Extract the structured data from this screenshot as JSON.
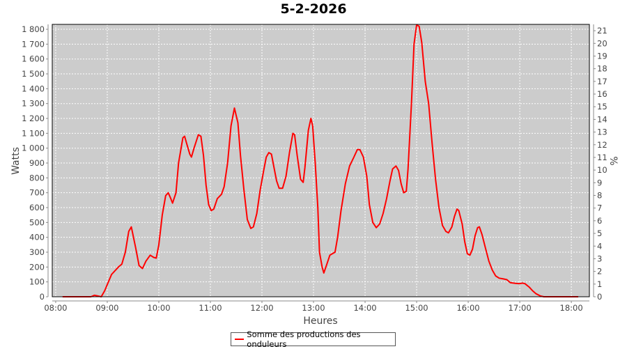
{
  "chart_data": {
    "type": "line",
    "title": "5-2-2026",
    "xlabel": "Heures",
    "ylabel": "Watts",
    "y2label": "%",
    "xlim": [
      "07:56",
      "18:21"
    ],
    "ylim": [
      0,
      1833
    ],
    "y2lim": [
      0,
      21.5
    ],
    "xticks": [
      "08:00",
      "09:00",
      "10:00",
      "11:00",
      "12:00",
      "13:00",
      "14:00",
      "15:00",
      "16:00",
      "17:00",
      "18:00"
    ],
    "yticks": [
      "0",
      "100",
      "200",
      "300",
      "400",
      "500",
      "600",
      "700",
      "800",
      "900",
      "1 000",
      "1 100",
      "1 200",
      "1 300",
      "1 400",
      "1 500",
      "1 600",
      "1 700",
      "1 800"
    ],
    "y2ticks": [
      "0",
      "1",
      "2",
      "3",
      "4",
      "5",
      "6",
      "7",
      "8",
      "9",
      "10",
      "11",
      "12",
      "13",
      "14",
      "15",
      "16",
      "17",
      "18",
      "19",
      "20",
      "21"
    ],
    "grid": true,
    "plot_background": "#cccccc",
    "legend_position": "bottom",
    "series": [
      {
        "name": "Somme des productions des onduleurs",
        "color": "#ff0000",
        "x": [
          "08:08",
          "08:41",
          "08:45",
          "08:49",
          "08:53",
          "08:57",
          "09:05",
          "09:13",
          "09:17",
          "09:21",
          "09:25",
          "09:28",
          "09:33",
          "09:37",
          "09:41",
          "09:45",
          "09:50",
          "09:54",
          "09:57",
          "10:00",
          "10:04",
          "10:08",
          "10:11",
          "10:14",
          "10:16",
          "10:20",
          "10:23",
          "10:28",
          "10:30",
          "10:32",
          "10:36",
          "10:38",
          "10:41",
          "10:46",
          "10:49",
          "10:52",
          "10:55",
          "10:58",
          "11:01",
          "11:04",
          "11:08",
          "11:13",
          "11:16",
          "11:20",
          "11:24",
          "11:28",
          "11:32",
          "11:35",
          "11:39",
          "11:43",
          "11:47",
          "11:50",
          "11:54",
          "11:58",
          "12:02",
          "12:05",
          "12:08",
          "12:11",
          "12:14",
          "12:17",
          "12:20",
          "12:24",
          "12:28",
          "12:32",
          "12:36",
          "12:38",
          "12:41",
          "12:45",
          "12:48",
          "12:50",
          "12:54",
          "12:57",
          "12:59",
          "13:02",
          "13:05",
          "13:07",
          "13:10",
          "13:12",
          "13:15",
          "13:19",
          "13:22",
          "13:25",
          "13:28",
          "13:32",
          "13:37",
          "13:42",
          "13:47",
          "13:51",
          "13:54",
          "13:58",
          "14:02",
          "14:05",
          "14:09",
          "14:13",
          "14:17",
          "14:21",
          "14:25",
          "14:29",
          "14:32",
          "14:36",
          "14:39",
          "14:42",
          "14:45",
          "14:48",
          "14:50",
          "14:54",
          "14:57",
          "15:00",
          "15:03",
          "15:06",
          "15:10",
          "15:14",
          "15:18",
          "15:22",
          "15:26",
          "15:30",
          "15:34",
          "15:37",
          "15:41",
          "15:44",
          "15:47",
          "15:49",
          "15:53",
          "15:56",
          "15:59",
          "16:02",
          "16:05",
          "16:08",
          "16:11",
          "16:13",
          "16:16",
          "16:20",
          "16:24",
          "16:28",
          "16:32",
          "16:36",
          "16:41",
          "16:45",
          "16:49",
          "16:55",
          "17:00",
          "17:03",
          "17:06",
          "17:11",
          "17:15",
          "17:19",
          "17:24",
          "17:28",
          "18:08"
        ],
        "y": [
          0,
          0,
          10,
          5,
          0,
          40,
          150,
          200,
          220,
          300,
          440,
          470,
          330,
          210,
          190,
          240,
          280,
          265,
          260,
          350,
          550,
          680,
          700,
          660,
          630,
          700,
          900,
          1070,
          1080,
          1040,
          960,
          940,
          1000,
          1090,
          1080,
          950,
          750,
          620,
          580,
          590,
          660,
          690,
          740,
          900,
          1150,
          1270,
          1170,
          950,
          720,
          520,
          460,
          470,
          560,
          720,
          850,
          940,
          970,
          960,
          870,
          780,
          730,
          730,
          810,
          970,
          1100,
          1090,
          950,
          790,
          770,
          870,
          1120,
          1200,
          1150,
          900,
          600,
          300,
          200,
          160,
          210,
          280,
          290,
          300,
          400,
          580,
          760,
          880,
          940,
          990,
          990,
          940,
          810,
          620,
          500,
          465,
          490,
          560,
          660,
          780,
          860,
          880,
          850,
          760,
          700,
          710,
          860,
          1300,
          1700,
          1830,
          1820,
          1710,
          1450,
          1300,
          1030,
          790,
          600,
          480,
          440,
          430,
          470,
          540,
          590,
          580,
          490,
          370,
          290,
          280,
          320,
          410,
          465,
          470,
          420,
          330,
          240,
          180,
          140,
          125,
          120,
          115,
          95,
          90,
          88,
          92,
          88,
          65,
          40,
          20,
          5,
          0,
          0
        ]
      }
    ]
  }
}
